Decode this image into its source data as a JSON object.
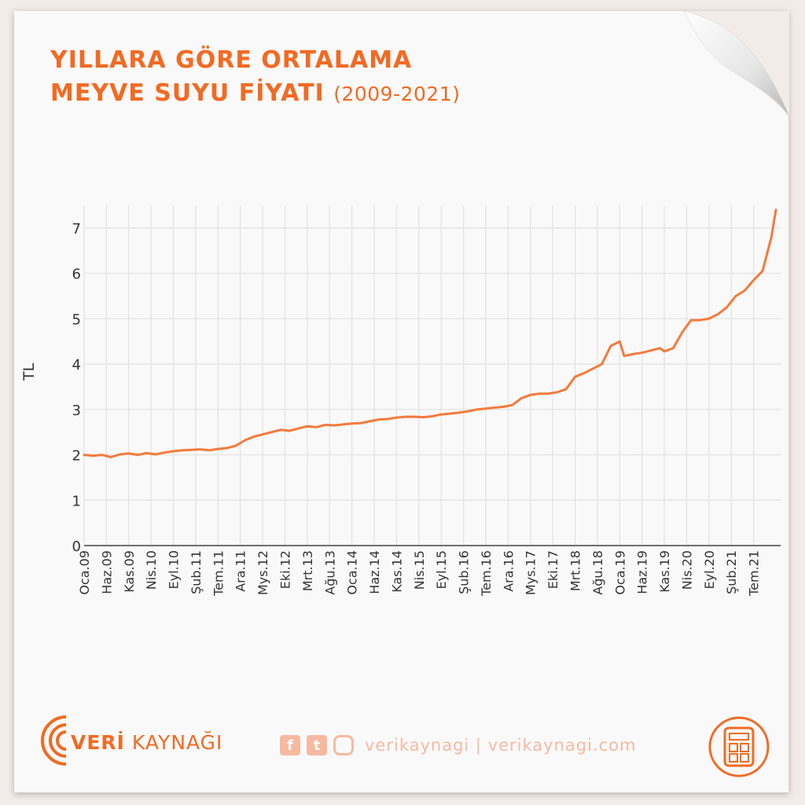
{
  "title_line1": "YILLARA GÖRE ORTALAMA",
  "title_line2": "MEYVE SUYU FİYATI",
  "title_sub": "(2009-2021)",
  "brand": {
    "part1": "VERİ",
    "part2": " KAYNAĞI"
  },
  "social_text": "verikaynagi | verikaynagi.com",
  "icons": [
    "facebook-icon",
    "twitter-icon",
    "instagram-icon",
    "calculator-icon"
  ],
  "colors": {
    "accent": "#f26a23",
    "line": "#f47a3c",
    "grid": "#e2e2e2"
  },
  "chart_data": {
    "type": "line",
    "ylabel": "TL",
    "ylim": [
      0,
      7.5
    ],
    "yticks": [
      0,
      1,
      2,
      3,
      4,
      5,
      6,
      7
    ],
    "x_unit": "month",
    "x_start": "2009-01",
    "x_end": "2021-12",
    "tick_labels": [
      "Oca.09",
      "Haz.09",
      "Kas.09",
      "Nis.10",
      "Eyl.10",
      "Şub.11",
      "Tem.11",
      "Ara.11",
      "Mys.12",
      "Eki.12",
      "Mrt.13",
      "Ağu.13",
      "Oca.14",
      "Haz.14",
      "Kas.14",
      "Nis.15",
      "Eyl.15",
      "Şub.16",
      "Tem.16",
      "Ara.16",
      "Mys.17",
      "Eki.17",
      "Mrt.18",
      "Ağu.18",
      "Oca.19",
      "Haz.19",
      "Kas.19",
      "Nis.20",
      "Eyl.20",
      "Şub.21",
      "Tem.21"
    ],
    "grid": true,
    "series": [
      {
        "points": [
          [
            "2009-01",
            2.0
          ],
          [
            "2009-03",
            1.98
          ],
          [
            "2009-05",
            2.0
          ],
          [
            "2009-07",
            1.95
          ],
          [
            "2009-09",
            2.01
          ],
          [
            "2009-11",
            2.03
          ],
          [
            "2010-01",
            2.0
          ],
          [
            "2010-03",
            2.04
          ],
          [
            "2010-05",
            2.01
          ],
          [
            "2010-07",
            2.05
          ],
          [
            "2010-09",
            2.08
          ],
          [
            "2010-11",
            2.1
          ],
          [
            "2011-01",
            2.11
          ],
          [
            "2011-03",
            2.12
          ],
          [
            "2011-05",
            2.1
          ],
          [
            "2011-07",
            2.13
          ],
          [
            "2011-09",
            2.15
          ],
          [
            "2011-11",
            2.2
          ],
          [
            "2012-01",
            2.32
          ],
          [
            "2012-03",
            2.4
          ],
          [
            "2012-05",
            2.45
          ],
          [
            "2012-07",
            2.5
          ],
          [
            "2012-09",
            2.55
          ],
          [
            "2012-11",
            2.53
          ],
          [
            "2013-01",
            2.58
          ],
          [
            "2013-03",
            2.63
          ],
          [
            "2013-05",
            2.61
          ],
          [
            "2013-07",
            2.66
          ],
          [
            "2013-09",
            2.65
          ],
          [
            "2013-11",
            2.67
          ],
          [
            "2014-01",
            2.69
          ],
          [
            "2014-03",
            2.7
          ],
          [
            "2014-05",
            2.74
          ],
          [
            "2014-07",
            2.78
          ],
          [
            "2014-09",
            2.79
          ],
          [
            "2014-11",
            2.82
          ],
          [
            "2015-01",
            2.84
          ],
          [
            "2015-03",
            2.84
          ],
          [
            "2015-05",
            2.83
          ],
          [
            "2015-07",
            2.85
          ],
          [
            "2015-09",
            2.89
          ],
          [
            "2015-11",
            2.91
          ],
          [
            "2016-01",
            2.93
          ],
          [
            "2016-03",
            2.96
          ],
          [
            "2016-05",
            3.0
          ],
          [
            "2016-07",
            3.02
          ],
          [
            "2016-09",
            3.04
          ],
          [
            "2016-11",
            3.06
          ],
          [
            "2017-01",
            3.1
          ],
          [
            "2017-03",
            3.25
          ],
          [
            "2017-05",
            3.32
          ],
          [
            "2017-07",
            3.35
          ],
          [
            "2017-09",
            3.35
          ],
          [
            "2017-11",
            3.38
          ],
          [
            "2018-01",
            3.45
          ],
          [
            "2018-03",
            3.72
          ],
          [
            "2018-05",
            3.8
          ],
          [
            "2018-07",
            3.9
          ],
          [
            "2018-09",
            4.0
          ],
          [
            "2018-11",
            4.4
          ],
          [
            "2019-01",
            4.5
          ],
          [
            "2019-02",
            4.18
          ],
          [
            "2019-04",
            4.22
          ],
          [
            "2019-06",
            4.25
          ],
          [
            "2019-08",
            4.3
          ],
          [
            "2019-10",
            4.35
          ],
          [
            "2019-11",
            4.28
          ],
          [
            "2020-01",
            4.35
          ],
          [
            "2020-03",
            4.7
          ],
          [
            "2020-05",
            4.97
          ],
          [
            "2020-07",
            4.97
          ],
          [
            "2020-09",
            5.0
          ],
          [
            "2020-11",
            5.1
          ],
          [
            "2021-01",
            5.25
          ],
          [
            "2021-03",
            5.5
          ],
          [
            "2021-05",
            5.62
          ],
          [
            "2021-07",
            5.85
          ],
          [
            "2021-09",
            6.05
          ],
          [
            "2021-11",
            6.8
          ],
          [
            "2021-12",
            7.4
          ]
        ]
      }
    ]
  }
}
